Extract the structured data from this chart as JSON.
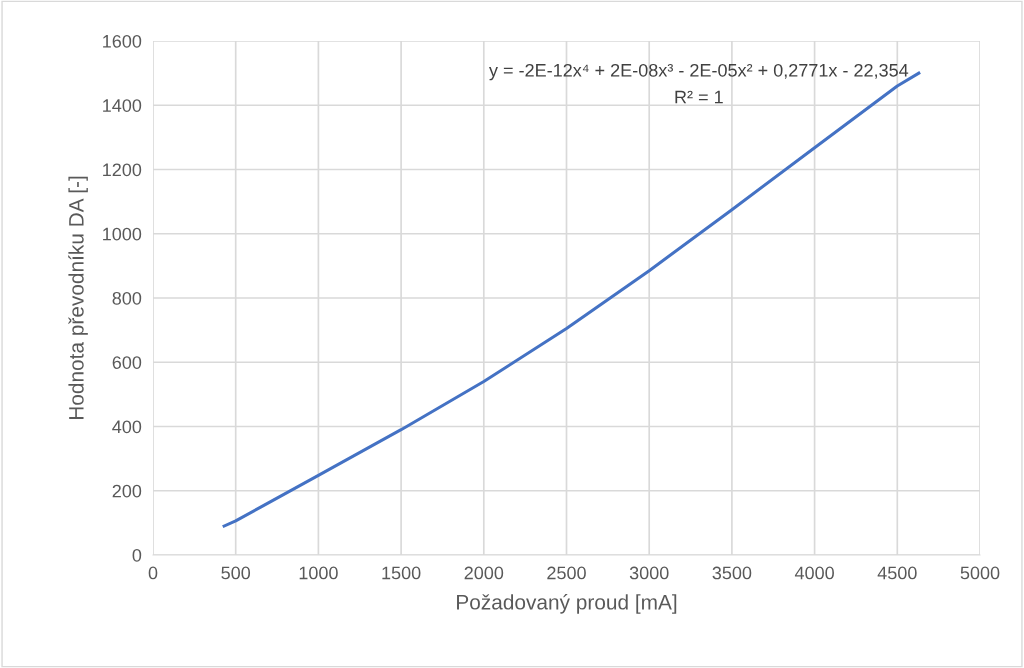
{
  "chart_data": {
    "type": "line",
    "xlabel": "Požadovaný proud [mA]",
    "ylabel": "Hodnota převodníku DA [-]",
    "annotations": [
      "y = -2E-12x⁴ + 2E-08x³ - 2E-05x² + 0,2771x - 22,354",
      "R² = 1"
    ],
    "series": [
      {
        "color": "#4472c4",
        "x": [
          430,
          500,
          1000,
          1500,
          2000,
          2500,
          3000,
          3500,
          4000,
          4500,
          4630
        ],
        "values": [
          90,
          106,
          248,
          390,
          540,
          705,
          885,
          1075,
          1268,
          1460,
          1500
        ]
      }
    ],
    "xlim": [
      0,
      5000
    ],
    "xticks": [
      0,
      500,
      1000,
      1500,
      2000,
      2500,
      3000,
      3500,
      4000,
      4500,
      5000
    ],
    "ylim": [
      0,
      1600
    ],
    "yticks": [
      0,
      200,
      400,
      600,
      800,
      1000,
      1200,
      1400,
      1600
    ],
    "grid": true,
    "legend": false,
    "marker": "none",
    "line_style": "solid"
  }
}
